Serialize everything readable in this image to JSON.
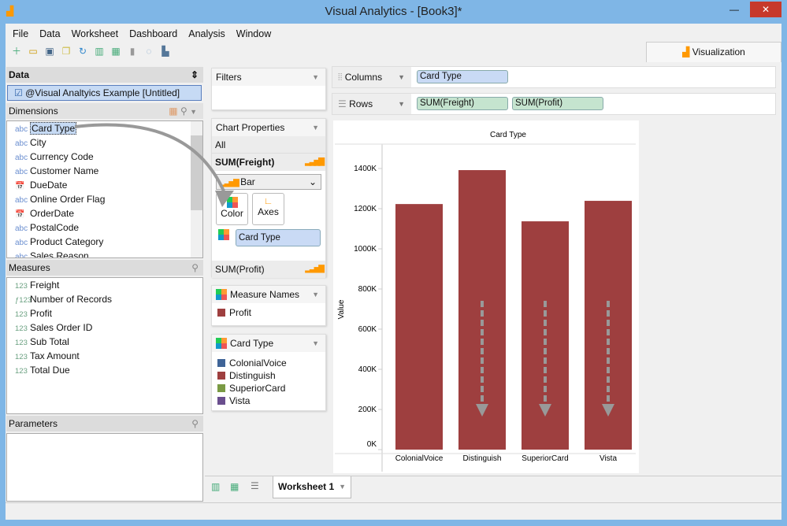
{
  "window": {
    "title": "Visual Analytics - [Book3]*",
    "min": "—",
    "max": "☐",
    "close": "✕"
  },
  "menu": [
    "File",
    "Data",
    "Worksheet",
    "Dashboard",
    "Analysis",
    "Window"
  ],
  "toolbar_icons": [
    "new-icon",
    "open-icon",
    "save-icon",
    "datasource-icon",
    "refresh-icon",
    "add-chart-icon",
    "add-dashboard-icon",
    "chart-icon",
    "snapshot-icon",
    "export-icon"
  ],
  "viz_tab": "Visualization",
  "data_panel": {
    "title": "Data",
    "datasource": "@Visual Analtyics Example [Untitled]",
    "dimensions_label": "Dimensions",
    "dimensions": [
      {
        "type": "abc",
        "name": "Card Type"
      },
      {
        "type": "abc",
        "name": "City"
      },
      {
        "type": "abc",
        "name": "Currency Code"
      },
      {
        "type": "abc",
        "name": "Customer Name"
      },
      {
        "type": "date",
        "name": "DueDate"
      },
      {
        "type": "abc",
        "name": "Online Order Flag"
      },
      {
        "type": "date",
        "name": "OrderDate"
      },
      {
        "type": "abc",
        "name": "PostalCode"
      },
      {
        "type": "abc",
        "name": "Product Category"
      },
      {
        "type": "abc",
        "name": "Sales Reason"
      }
    ],
    "measures_label": "Measures",
    "measures": [
      {
        "type": "123",
        "name": "Freight"
      },
      {
        "type": "f123",
        "name": "Number of Records"
      },
      {
        "type": "123",
        "name": "Profit"
      },
      {
        "type": "123",
        "name": "Sales Order ID"
      },
      {
        "type": "123",
        "name": "Sub Total"
      },
      {
        "type": "123",
        "name": "Tax Amount"
      },
      {
        "type": "123",
        "name": "Total Due"
      }
    ],
    "parameters_label": "Parameters"
  },
  "filters": {
    "title": "Filters"
  },
  "chart_properties": {
    "title": "Chart Properties",
    "all": "All",
    "measure1": "SUM(Freight)",
    "chart_type": "Bar",
    "color_btn": "Color",
    "axes_btn": "Axes",
    "color_field": "Card Type",
    "measure2": "SUM(Profit)"
  },
  "measure_names": {
    "title": "Measure Names",
    "items": [
      {
        "name": "Profit",
        "color": "#9e3f3f"
      }
    ]
  },
  "card_type_legend": {
    "title": "Card Type",
    "items": [
      {
        "name": "ColonialVoice",
        "color": "#3f6497"
      },
      {
        "name": "Distinguish",
        "color": "#9e3f3f"
      },
      {
        "name": "SuperiorCard",
        "color": "#7a9a44"
      },
      {
        "name": "Vista",
        "color": "#6a4e8e"
      }
    ]
  },
  "shelves": {
    "columns_label": "Columns",
    "columns": [
      "Card Type"
    ],
    "rows_label": "Rows",
    "rows": [
      "SUM(Freight)",
      "SUM(Profit)"
    ]
  },
  "chart_data": {
    "type": "bar",
    "title": "Card Type",
    "xlabel": "",
    "ylabel": "Value",
    "categories": [
      "ColonialVoice",
      "Distinguish",
      "SuperiorCard",
      "Vista"
    ],
    "values": [
      1223000,
      1392000,
      1137000,
      1239000
    ],
    "ylim": [
      0,
      1500000
    ],
    "yticks": [
      "0K",
      "200K",
      "400K",
      "600K",
      "800K",
      "1000K",
      "1200K",
      "1400K"
    ],
    "ytick_values": [
      0,
      200000,
      400000,
      600000,
      800000,
      1000000,
      1200000,
      1400000
    ],
    "bar_color": "#9e3f3f",
    "grid": false
  },
  "sheet_tabs": {
    "active": "Worksheet 1"
  }
}
